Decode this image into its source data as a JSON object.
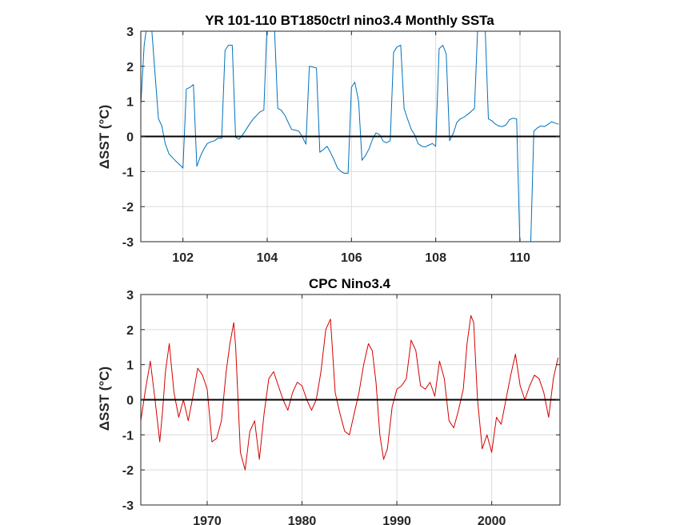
{
  "chart_data": [
    {
      "type": "line",
      "title": "YR 101-110 BT1850ctrl nino3.4 Monthly SSTa",
      "ylabel": "ΔSST (°C)",
      "xlabel": "",
      "xlim": [
        101,
        110.95
      ],
      "ylim": [
        -3,
        3
      ],
      "xticks": [
        102,
        104,
        106,
        108,
        110
      ],
      "xtick_labels": [
        "102",
        "104",
        "106",
        "108",
        "110"
      ],
      "yticks": [
        -3,
        -2,
        -1,
        0,
        1,
        2,
        3
      ],
      "ytick_labels": [
        "-3",
        "-2",
        "-1",
        "0",
        "1",
        "2",
        "3"
      ],
      "grid": true,
      "zero_line_color": "#000000",
      "series": [
        {
          "color": "#0072bd",
          "x": [
            101.0,
            101.08,
            101.17,
            101.25,
            101.33,
            101.42,
            101.5,
            101.58,
            101.67,
            101.75,
            101.83,
            101.92,
            102.0,
            102.08,
            102.17,
            102.25,
            102.33,
            102.42,
            102.5,
            102.58,
            102.67,
            102.75,
            102.83,
            102.92,
            103.0,
            103.08,
            103.17,
            103.25,
            103.33,
            103.42,
            103.5,
            103.58,
            103.67,
            103.75,
            103.83,
            103.92,
            104.0,
            104.08,
            104.17,
            104.25,
            104.33,
            104.42,
            104.5,
            104.58,
            104.67,
            104.75,
            104.83,
            104.92,
            105.0,
            105.08,
            105.17,
            105.25,
            105.33,
            105.42,
            105.5,
            105.58,
            105.67,
            105.75,
            105.83,
            105.92,
            106.0,
            106.08,
            106.17,
            106.25,
            106.33,
            106.42,
            106.5,
            106.58,
            106.67,
            106.75,
            106.83,
            106.92,
            107.0,
            107.08,
            107.17,
            107.25,
            107.33,
            107.42,
            107.5,
            107.58,
            107.67,
            107.75,
            107.83,
            107.92,
            108.0,
            108.08,
            108.17,
            108.25,
            108.33,
            108.42,
            108.5,
            108.58,
            108.67,
            108.75,
            108.83,
            108.92,
            109.0,
            109.08,
            109.17,
            109.25,
            109.33,
            109.42,
            109.5,
            109.58,
            109.67,
            109.75,
            109.83,
            109.92,
            110.0,
            110.08,
            110.17,
            110.25,
            110.33,
            110.42,
            110.5,
            110.58,
            110.67,
            110.75,
            110.83,
            110.92
          ],
          "y": [
            0.9,
            2.6,
            3.4,
            3.2,
            1.9,
            0.5,
            0.3,
            -0.2,
            -0.5,
            -0.6,
            -0.7,
            -0.8,
            -0.9,
            1.35,
            1.4,
            1.48,
            -0.85,
            -0.55,
            -0.35,
            -0.2,
            -0.15,
            -0.12,
            -0.05,
            -0.05,
            2.45,
            2.6,
            2.6,
            -0.02,
            -0.08,
            0.05,
            0.2,
            0.35,
            0.5,
            0.6,
            0.7,
            0.75,
            3.3,
            3.4,
            3.2,
            0.8,
            0.75,
            0.6,
            0.4,
            0.2,
            0.18,
            0.15,
            0.0,
            -0.22,
            2.0,
            1.98,
            1.95,
            -0.45,
            -0.38,
            -0.28,
            -0.45,
            -0.65,
            -0.9,
            -1.0,
            -1.05,
            -1.05,
            1.4,
            1.55,
            1.0,
            -0.68,
            -0.55,
            -0.35,
            -0.08,
            0.1,
            0.05,
            -0.13,
            -0.18,
            -0.12,
            2.4,
            2.55,
            2.6,
            0.8,
            0.5,
            0.2,
            0.05,
            -0.2,
            -0.28,
            -0.3,
            -0.25,
            -0.2,
            -0.28,
            2.5,
            2.6,
            2.35,
            -0.12,
            0.1,
            0.4,
            0.5,
            0.55,
            0.62,
            0.7,
            0.8,
            3.2,
            3.4,
            3.2,
            0.5,
            0.45,
            0.35,
            0.3,
            0.28,
            0.33,
            0.48,
            0.52,
            0.5,
            -3.2,
            -3.4,
            -3.4,
            -3.3,
            0.15,
            0.25,
            0.3,
            0.28,
            0.35,
            0.42,
            0.38,
            0.35
          ]
        }
      ]
    },
    {
      "type": "line",
      "title": "CPC Nino3.4",
      "ylabel": "ΔSST (°C)",
      "xlabel": "",
      "xlim": [
        1963,
        2007.2
      ],
      "ylim": [
        -3,
        3
      ],
      "xticks": [
        1970,
        1980,
        1990,
        2000
      ],
      "xtick_labels": [
        "1970",
        "1980",
        "1990",
        "2000"
      ],
      "yticks": [
        -3,
        -2,
        -1,
        0,
        1,
        2,
        3
      ],
      "ytick_labels": [
        "-3",
        "-2",
        "-1",
        "0",
        "1",
        "2",
        "3"
      ],
      "grid": true,
      "zero_line_color": "#000000",
      "series": [
        {
          "color": "#d40000",
          "x": [
            1963.0,
            1963.5,
            1964.0,
            1964.5,
            1965.0,
            1965.3,
            1965.6,
            1966.0,
            1966.5,
            1967.0,
            1967.5,
            1968.0,
            1968.5,
            1969.0,
            1969.5,
            1970.0,
            1970.5,
            1971.0,
            1971.5,
            1972.0,
            1972.4,
            1972.8,
            1973.0,
            1973.5,
            1974.0,
            1974.5,
            1975.0,
            1975.5,
            1976.0,
            1976.5,
            1977.0,
            1977.5,
            1978.0,
            1978.5,
            1979.0,
            1979.5,
            1980.0,
            1980.5,
            1981.0,
            1981.5,
            1982.0,
            1982.5,
            1983.0,
            1983.5,
            1984.0,
            1984.5,
            1985.0,
            1985.5,
            1986.0,
            1986.5,
            1987.0,
            1987.4,
            1987.8,
            1988.2,
            1988.6,
            1989.0,
            1989.5,
            1990.0,
            1990.5,
            1991.0,
            1991.5,
            1992.0,
            1992.5,
            1993.0,
            1993.5,
            1994.0,
            1994.5,
            1995.0,
            1995.5,
            1996.0,
            1996.5,
            1997.0,
            1997.4,
            1997.8,
            1998.1,
            1998.5,
            1999.0,
            1999.5,
            2000.0,
            2000.5,
            2001.0,
            2001.5,
            2002.0,
            2002.5,
            2003.0,
            2003.5,
            2004.0,
            2004.5,
            2005.0,
            2005.5,
            2006.0,
            2006.5,
            2007.0
          ],
          "y": [
            -0.6,
            0.3,
            1.1,
            0.0,
            -1.2,
            -0.3,
            0.8,
            1.6,
            0.2,
            -0.5,
            0.0,
            -0.6,
            0.1,
            0.9,
            0.7,
            0.3,
            -1.2,
            -1.1,
            -0.6,
            0.8,
            1.6,
            2.2,
            1.5,
            -1.5,
            -2.0,
            -0.9,
            -0.6,
            -1.7,
            -0.4,
            0.6,
            0.8,
            0.4,
            0.0,
            -0.3,
            0.2,
            0.5,
            0.4,
            0.0,
            -0.3,
            0.0,
            0.8,
            2.0,
            2.3,
            0.2,
            -0.4,
            -0.9,
            -1.0,
            -0.4,
            0.2,
            1.0,
            1.6,
            1.4,
            0.5,
            -1.0,
            -1.7,
            -1.4,
            -0.2,
            0.3,
            0.4,
            0.6,
            1.7,
            1.4,
            0.4,
            0.3,
            0.5,
            0.1,
            1.1,
            0.6,
            -0.6,
            -0.8,
            -0.3,
            0.3,
            1.6,
            2.4,
            2.2,
            0.0,
            -1.4,
            -1.0,
            -1.5,
            -0.5,
            -0.7,
            0.0,
            0.7,
            1.3,
            0.4,
            0.0,
            0.4,
            0.7,
            0.6,
            0.2,
            -0.5,
            0.6,
            1.2
          ]
        }
      ]
    }
  ]
}
